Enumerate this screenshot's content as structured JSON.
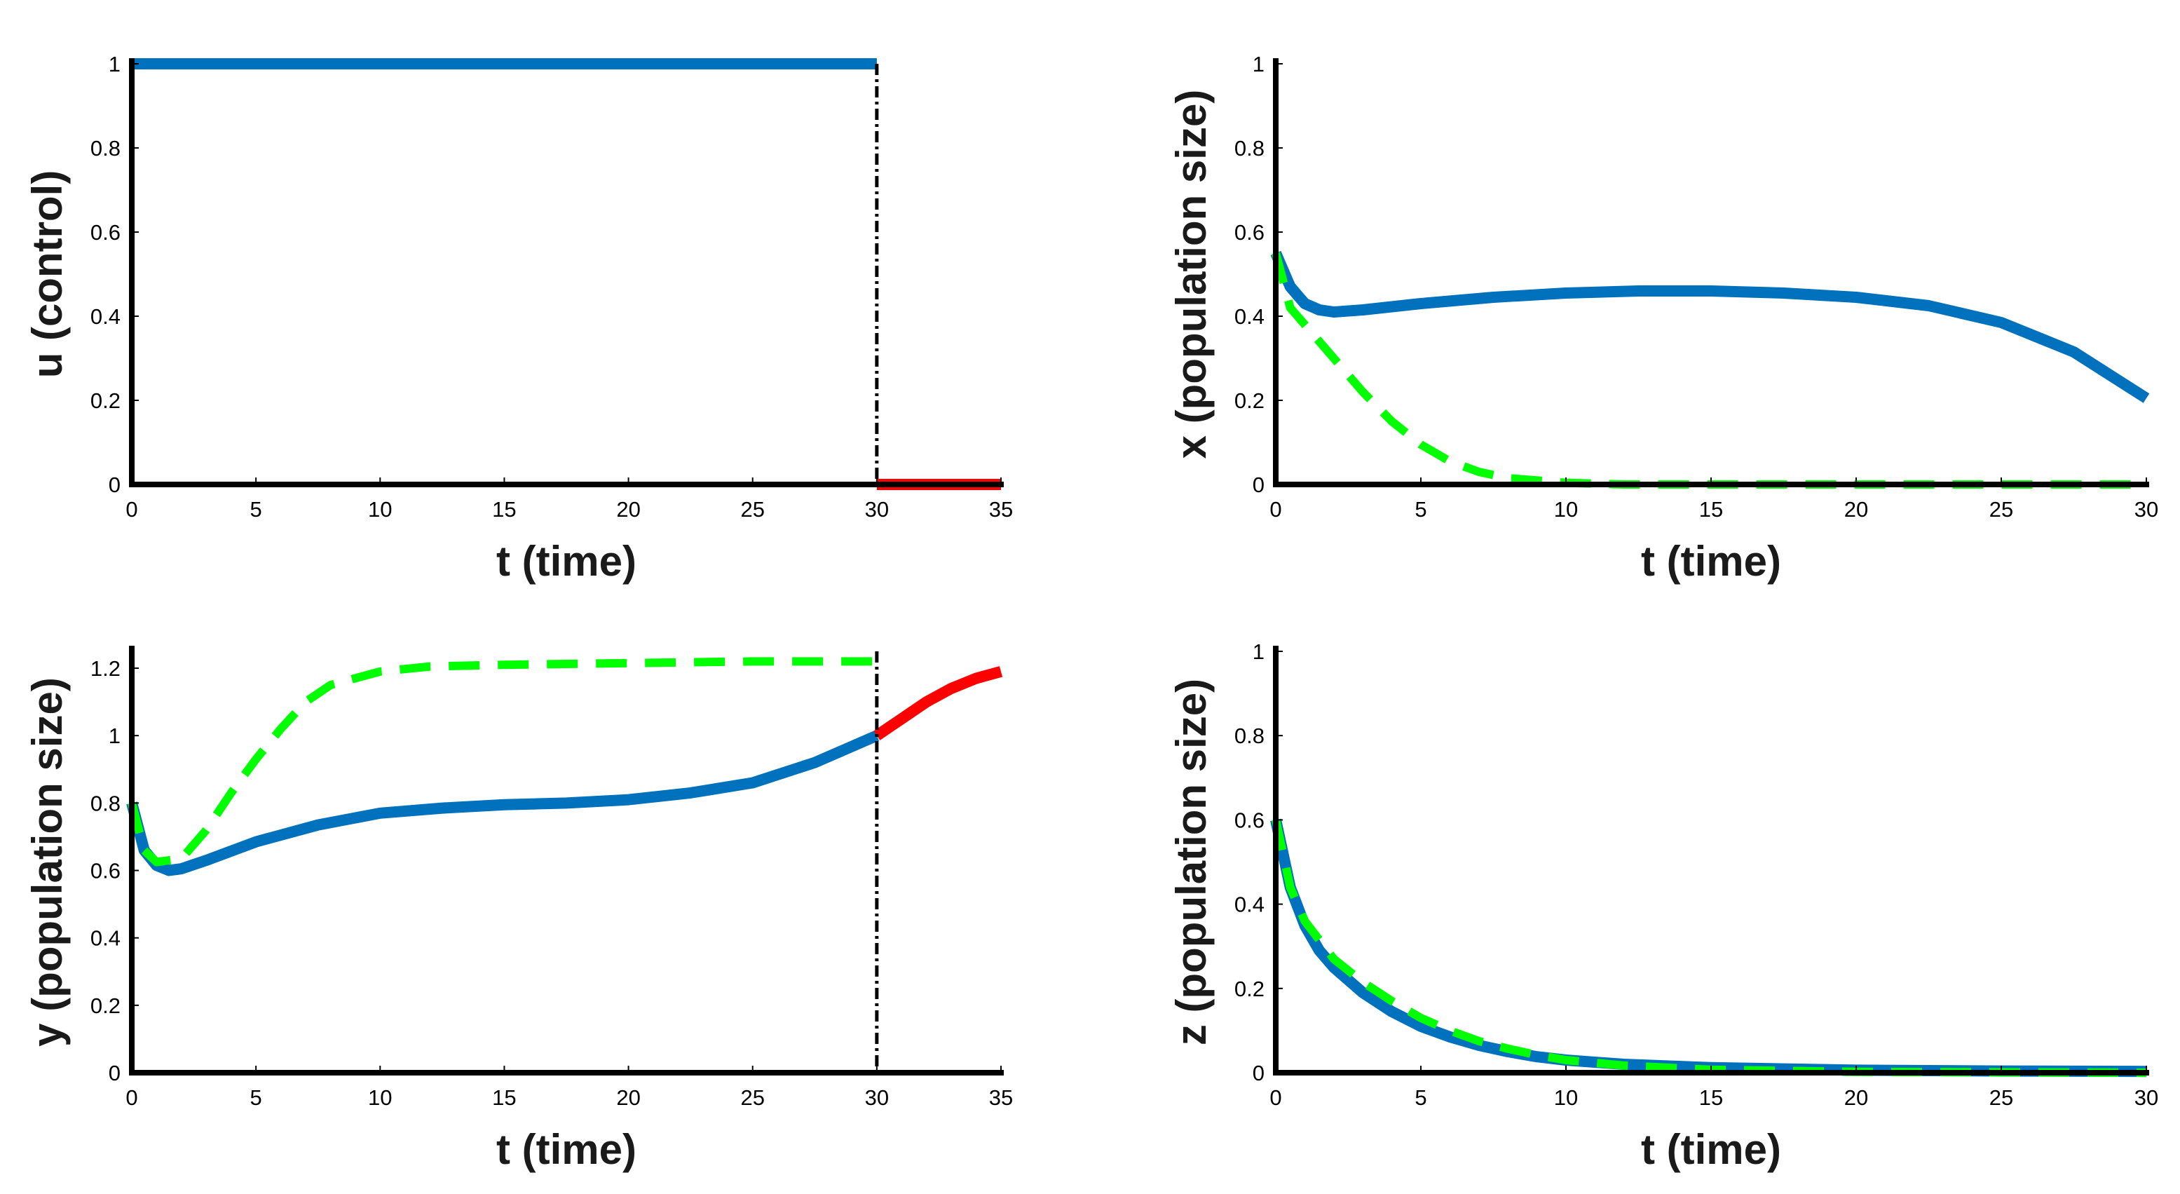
{
  "colors": {
    "optimal": "#0072BD",
    "uncontrolled": "#00FF00",
    "extension": "#FF0000",
    "marker": "#000000",
    "axis": "#000000"
  },
  "chart_data": [
    {
      "id": "u",
      "type": "line",
      "xlabel": "t (time)",
      "ylabel": "u (control)",
      "xlim": [
        0,
        35
      ],
      "ylim": [
        0,
        1
      ],
      "xticks": [
        0,
        5,
        10,
        15,
        20,
        25,
        30,
        35
      ],
      "yticks": [
        0,
        0.2,
        0.4,
        0.6,
        0.8,
        1
      ],
      "vline_x": 30,
      "series": [
        {
          "name": "control",
          "style": "solid",
          "color": "optimal",
          "points": [
            [
              0,
              1
            ],
            [
              30,
              1
            ]
          ]
        },
        {
          "name": "control after 30",
          "style": "solid",
          "color": "extension",
          "points": [
            [
              30,
              0
            ],
            [
              35,
              0
            ]
          ]
        }
      ]
    },
    {
      "id": "x",
      "type": "line",
      "xlabel": "t (time)",
      "ylabel": "x (population size)",
      "xlim": [
        0,
        30
      ],
      "ylim": [
        0,
        1
      ],
      "xticks": [
        0,
        5,
        10,
        15,
        20,
        25,
        30
      ],
      "yticks": [
        0,
        0.2,
        0.4,
        0.6,
        0.8,
        1
      ],
      "series": [
        {
          "name": "x optimal",
          "style": "solid",
          "color": "optimal",
          "points": [
            [
              0,
              0.55
            ],
            [
              0.5,
              0.47
            ],
            [
              1,
              0.43
            ],
            [
              1.5,
              0.415
            ],
            [
              2,
              0.41
            ],
            [
              3,
              0.415
            ],
            [
              5,
              0.43
            ],
            [
              7.5,
              0.445
            ],
            [
              10,
              0.455
            ],
            [
              12.5,
              0.46
            ],
            [
              15,
              0.46
            ],
            [
              17.5,
              0.455
            ],
            [
              20,
              0.445
            ],
            [
              22.5,
              0.425
            ],
            [
              25,
              0.385
            ],
            [
              27.5,
              0.315
            ],
            [
              30,
              0.205
            ]
          ]
        },
        {
          "name": "x uncontrolled",
          "style": "dashed",
          "color": "uncontrolled",
          "points": [
            [
              0,
              0.55
            ],
            [
              0.5,
              0.42
            ],
            [
              1,
              0.38
            ],
            [
              2,
              0.3
            ],
            [
              3,
              0.22
            ],
            [
              4,
              0.15
            ],
            [
              5,
              0.095
            ],
            [
              6,
              0.055
            ],
            [
              7,
              0.03
            ],
            [
              8,
              0.015
            ],
            [
              10,
              0.004
            ],
            [
              12,
              0
            ],
            [
              15,
              0
            ],
            [
              20,
              0
            ],
            [
              25,
              0
            ],
            [
              30,
              0
            ]
          ]
        }
      ]
    },
    {
      "id": "y",
      "type": "line",
      "xlabel": "t (time)",
      "ylabel": "y (population size)",
      "xlim": [
        0,
        35
      ],
      "ylim": [
        0,
        1.25
      ],
      "xticks": [
        0,
        5,
        10,
        15,
        20,
        25,
        30,
        35
      ],
      "yticks": [
        0,
        0.2,
        0.4,
        0.6,
        0.8,
        1,
        1.2
      ],
      "vline_x": 30,
      "series": [
        {
          "name": "y optimal",
          "style": "solid",
          "color": "optimal",
          "points": [
            [
              0,
              0.8
            ],
            [
              0.5,
              0.66
            ],
            [
              1,
              0.615
            ],
            [
              1.5,
              0.6
            ],
            [
              2,
              0.605
            ],
            [
              3,
              0.63
            ],
            [
              5,
              0.685
            ],
            [
              7.5,
              0.735
            ],
            [
              10,
              0.77
            ],
            [
              12.5,
              0.785
            ],
            [
              15,
              0.795
            ],
            [
              17.5,
              0.8
            ],
            [
              20,
              0.81
            ],
            [
              22.5,
              0.83
            ],
            [
              25,
              0.86
            ],
            [
              27.5,
              0.92
            ],
            [
              30,
              1.0
            ]
          ]
        },
        {
          "name": "y uncontrolled",
          "style": "dashed",
          "color": "uncontrolled",
          "points": [
            [
              0,
              0.8
            ],
            [
              0.5,
              0.66
            ],
            [
              1,
              0.625
            ],
            [
              2,
              0.635
            ],
            [
              3,
              0.72
            ],
            [
              4,
              0.83
            ],
            [
              5,
              0.93
            ],
            [
              6,
              1.02
            ],
            [
              7,
              1.1
            ],
            [
              8,
              1.15
            ],
            [
              10,
              1.19
            ],
            [
              12,
              1.205
            ],
            [
              15,
              1.21
            ],
            [
              20,
              1.215
            ],
            [
              25,
              1.22
            ],
            [
              30,
              1.22
            ]
          ]
        },
        {
          "name": "y after 30",
          "style": "solid",
          "color": "extension",
          "points": [
            [
              30,
              1.0
            ],
            [
              31,
              1.05
            ],
            [
              32,
              1.1
            ],
            [
              33,
              1.14
            ],
            [
              34,
              1.17
            ],
            [
              35,
              1.19
            ]
          ]
        }
      ]
    },
    {
      "id": "z",
      "type": "line",
      "xlabel": "t (time)",
      "ylabel": "z (population size)",
      "xlim": [
        0,
        30
      ],
      "ylim": [
        0,
        1
      ],
      "xticks": [
        0,
        5,
        10,
        15,
        20,
        25,
        30
      ],
      "yticks": [
        0,
        0.2,
        0.4,
        0.6,
        0.8,
        1
      ],
      "series": [
        {
          "name": "z optimal",
          "style": "solid",
          "color": "optimal",
          "points": [
            [
              0,
              0.6
            ],
            [
              0.5,
              0.44
            ],
            [
              1,
              0.35
            ],
            [
              1.5,
              0.29
            ],
            [
              2,
              0.25
            ],
            [
              3,
              0.19
            ],
            [
              4,
              0.145
            ],
            [
              5,
              0.11
            ],
            [
              6,
              0.085
            ],
            [
              7,
              0.065
            ],
            [
              8,
              0.05
            ],
            [
              9,
              0.038
            ],
            [
              10,
              0.03
            ],
            [
              12,
              0.02
            ],
            [
              15,
              0.012
            ],
            [
              20,
              0.006
            ],
            [
              25,
              0.004
            ],
            [
              30,
              0.003
            ]
          ]
        },
        {
          "name": "z uncontrolled",
          "style": "dashed",
          "color": "uncontrolled",
          "points": [
            [
              0,
              0.6
            ],
            [
              0.5,
              0.44
            ],
            [
              1,
              0.36
            ],
            [
              2,
              0.27
            ],
            [
              3,
              0.215
            ],
            [
              4,
              0.17
            ],
            [
              5,
              0.13
            ],
            [
              6,
              0.1
            ],
            [
              7,
              0.075
            ],
            [
              8,
              0.057
            ],
            [
              9,
              0.042
            ],
            [
              10,
              0.03
            ],
            [
              12,
              0.017
            ],
            [
              15,
              0.007
            ],
            [
              20,
              0.002
            ],
            [
              25,
              0.001
            ],
            [
              30,
              0
            ]
          ]
        }
      ]
    }
  ]
}
